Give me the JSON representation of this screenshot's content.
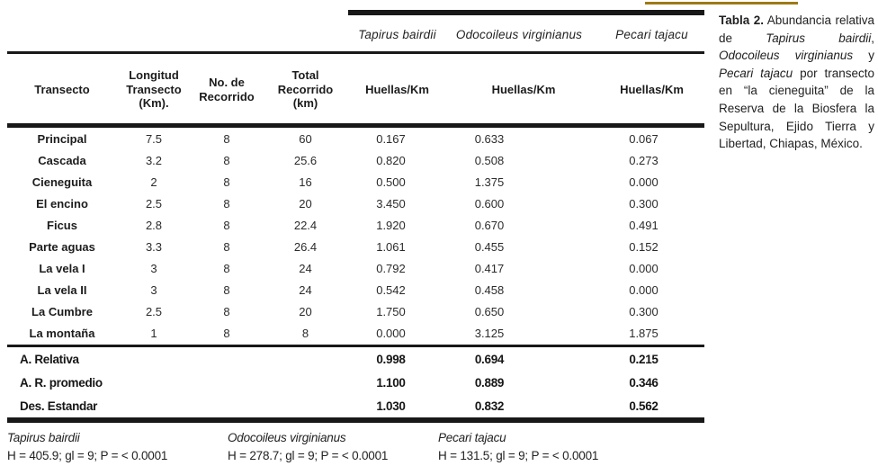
{
  "colors": {
    "accent_gold": "#9d7a16",
    "rule_black": "#181818"
  },
  "table": {
    "species_headers": [
      "Tapirus bairdii",
      "Odocoileus virginianus",
      "Pecari tajacu"
    ],
    "columns": [
      "Transecto",
      "Longitud Transecto (Km).",
      "No. de Recorrido",
      "Total Recorrido (km)",
      "Huellas/Km",
      "Huellas/Km",
      "Huellas/Km"
    ],
    "rows": [
      [
        "Principal",
        "7.5",
        "8",
        "60",
        "0.167",
        "0.633",
        "0.067"
      ],
      [
        "Cascada",
        "3.2",
        "8",
        "25.6",
        "0.820",
        "0.508",
        "0.273"
      ],
      [
        "Cieneguita",
        "2",
        "8",
        "16",
        "0.500",
        "1.375",
        "0.000"
      ],
      [
        "El encino",
        "2.5",
        "8",
        "20",
        "3.450",
        "0.600",
        "0.300"
      ],
      [
        "Ficus",
        "2.8",
        "8",
        "22.4",
        "1.920",
        "0.670",
        "0.491"
      ],
      [
        "Parte aguas",
        "3.3",
        "8",
        "26.4",
        "1.061",
        "0.455",
        "0.152"
      ],
      [
        "La vela I",
        "3",
        "8",
        "24",
        "0.792",
        "0.417",
        "0.000"
      ],
      [
        "La vela II",
        "3",
        "8",
        "24",
        "0.542",
        "0.458",
        "0.000"
      ],
      [
        "La Cumbre",
        "2.5",
        "8",
        "20",
        "1.750",
        "0.650",
        "0.300"
      ],
      [
        "La montaña",
        "1",
        "8",
        "8",
        "0.000",
        "3.125",
        "1.875"
      ]
    ],
    "summary_rows": [
      {
        "label": "A. Relativa",
        "values": [
          "0.998",
          "0.694",
          "0.215"
        ]
      },
      {
        "label": "A. R. promedio",
        "values": [
          "1.100",
          "0.889",
          "0.346"
        ]
      },
      {
        "label": "Des. Estandar",
        "values": [
          "1.030",
          "0.832",
          "0.562"
        ]
      }
    ]
  },
  "footnotes": [
    {
      "species": "Tapirus bairdii",
      "stats": "H = 405.9; gl = 9; P = < 0.0001"
    },
    {
      "species": "Odocoileus virginianus",
      "stats": "H = 278.7; gl = 9; P = < 0.0001"
    },
    {
      "species": "Pecari tajacu",
      "stats": "H =  131.5; gl = 9;  P = < 0.0001"
    }
  ],
  "caption": {
    "label": "Tabla 2.",
    "text_1": "  Abundancia relativa de ",
    "species_1": "Tapirus bairdii",
    "text_2": ", ",
    "species_2": "Odocoileus virginianus",
    "text_3": " y ",
    "species_3": "Pecari tajacu",
    "text_4": " por transecto en “la cieneguita” de la Reserva de la Biosfera la Sepultura, Ejido Tierra y Libertad, Chiapas, México."
  }
}
